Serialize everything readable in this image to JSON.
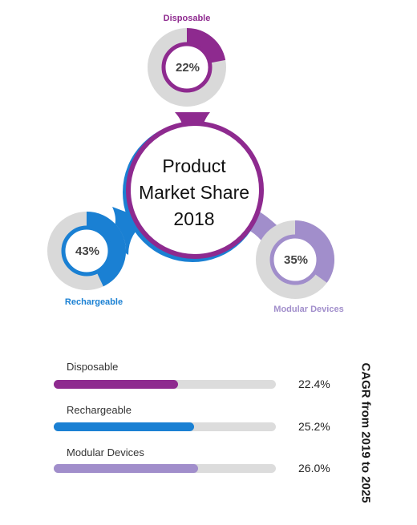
{
  "center_title": [
    "Product",
    "Market Share",
    "2018"
  ],
  "chart_data": [
    {
      "type": "pie",
      "title": "Product Market Share 2018",
      "categories": [
        "Disposable",
        "Rechargeable",
        "Modular Devices"
      ],
      "values": [
        22,
        43,
        35
      ],
      "value_labels": [
        "22%",
        "43%",
        "35%"
      ],
      "colors": [
        "#8e2a8f",
        "#1a80d3",
        "#a18ecb"
      ]
    },
    {
      "type": "bar",
      "title": "CAGR from 2019 to 2025",
      "categories": [
        "Disposable",
        "Rechargeable",
        "Modular Devices"
      ],
      "values": [
        22.4,
        25.2,
        26.0
      ],
      "value_labels": [
        "22.4%",
        "25.2%",
        "26.0%"
      ],
      "colors": [
        "#8e2a8f",
        "#1a80d3",
        "#a18ecb"
      ]
    }
  ]
}
